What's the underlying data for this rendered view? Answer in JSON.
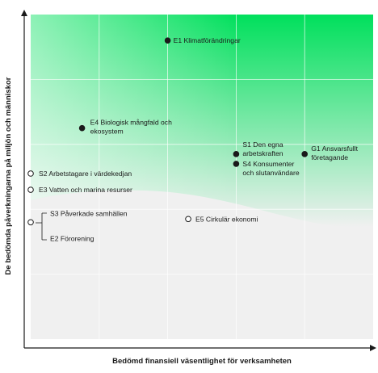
{
  "chart_data": {
    "type": "scatter",
    "xlabel": "Bedömd finansiell väsentlighet för verksamheten",
    "ylabel": "De bedömda påverkningarna på miljön och människor",
    "xlim": [
      0,
      5
    ],
    "ylim": [
      0,
      5
    ],
    "grid": true,
    "points": [
      {
        "id": "E1",
        "lines": [
          "E1 Klimatförändringar"
        ],
        "x": 2.0,
        "y": 4.6,
        "filled": true
      },
      {
        "id": "E4",
        "lines": [
          "E4 Biologisk mångfald och",
          "ekosystem"
        ],
        "x": 0.75,
        "y": 3.25,
        "filled": true
      },
      {
        "id": "S1",
        "lines": [
          "S1 Den egna",
          "arbetskraften"
        ],
        "x": 3.0,
        "y": 2.85,
        "filled": true
      },
      {
        "id": "S4",
        "lines": [
          "S4 Konsumenter",
          "och slutanvändare"
        ],
        "x": 3.0,
        "y": 2.7,
        "filled": true
      },
      {
        "id": "G1",
        "lines": [
          "G1 Ansvarsfullt",
          "företagande"
        ],
        "x": 4.0,
        "y": 2.85,
        "filled": true
      },
      {
        "id": "S2",
        "lines": [
          "S2 Arbetstagare i värdekedjan"
        ],
        "x": 0.0,
        "y": 2.55,
        "filled": false
      },
      {
        "id": "E3",
        "lines": [
          "E3 Vatten och marina resurser"
        ],
        "x": 0.0,
        "y": 2.3,
        "filled": false
      },
      {
        "id": "E5",
        "lines": [
          "E5 Cirkulär ekonomi"
        ],
        "x": 2.3,
        "y": 1.85,
        "filled": false
      },
      {
        "id": "S3",
        "lines": [
          "S3 Påverkade samhällen"
        ],
        "x": 0.0,
        "y": 1.8,
        "filled": false
      },
      {
        "id": "E2",
        "lines": [
          "E2 Förorening"
        ],
        "x": 0.0,
        "y": 1.8,
        "filled": false
      }
    ],
    "colors": {
      "high": "#00e05c",
      "low": "#f0f0f0",
      "grid": "#ffffff",
      "axis": "#1a1a1a"
    }
  }
}
